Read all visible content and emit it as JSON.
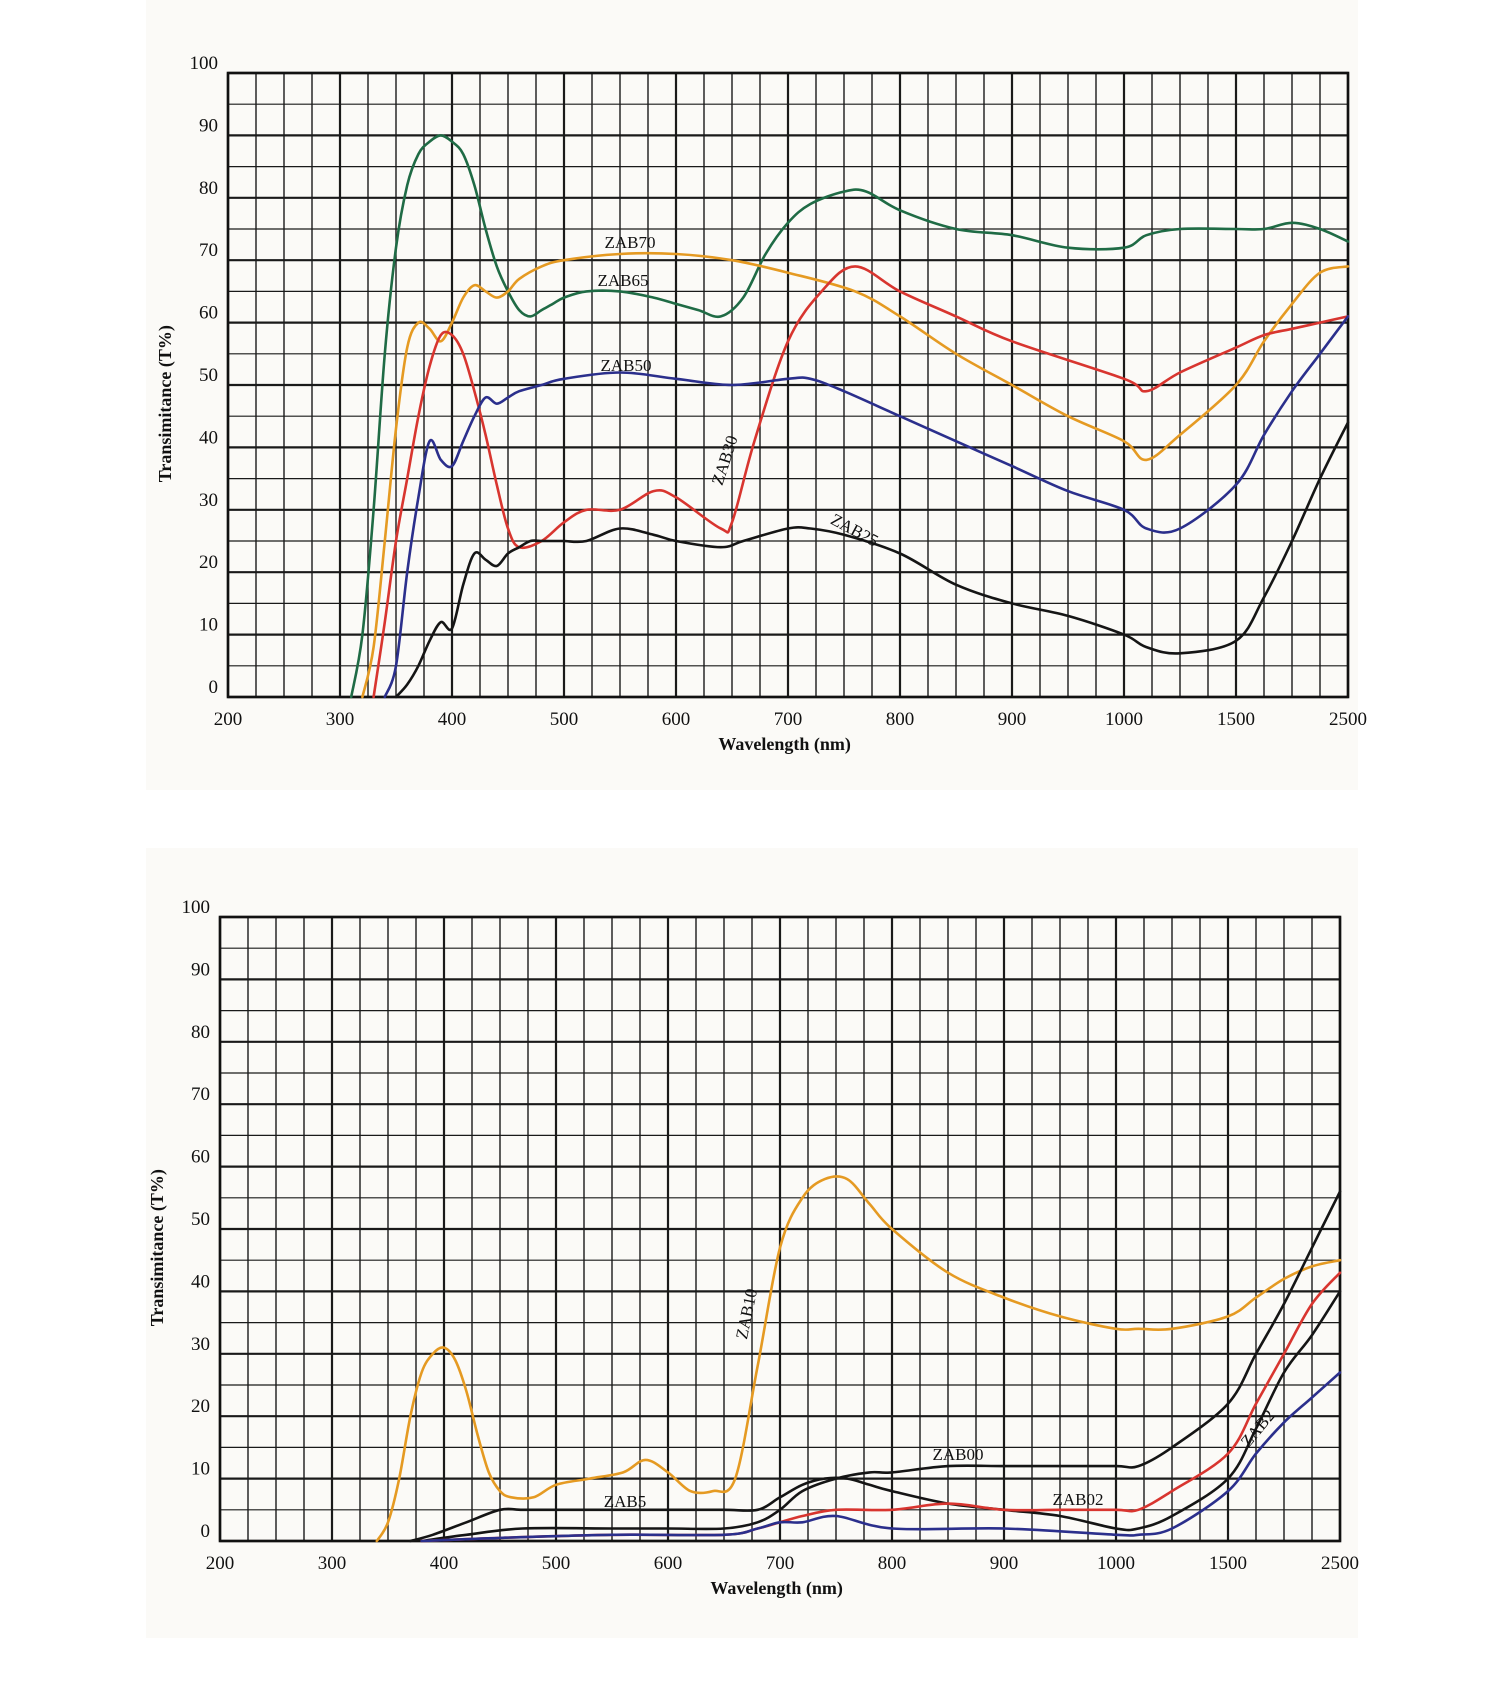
{
  "colors": {
    "green": "#1f6b45",
    "orange": "#e59a22",
    "red": "#d8352f",
    "blue": "#2b2f8c",
    "black": "#151515",
    "grid": "#1a1a1a"
  },
  "chart_data": [
    {
      "type": "line",
      "title": "",
      "xlabel": "Wavelength  (nm)",
      "ylabel": "Transimitance  (T%)",
      "x_ticks": [
        "200",
        "300",
        "400",
        "500",
        "600",
        "700",
        "800",
        "900",
        "1000",
        "1500",
        "2500"
      ],
      "y_ticks": [
        "0",
        "10",
        "20",
        "30",
        "40",
        "50",
        "60",
        "70",
        "80",
        "90",
        "100"
      ],
      "ylim": [
        0,
        100
      ],
      "grid": true,
      "series": [
        {
          "name": "ZAB70",
          "color": "green",
          "x": [
            310,
            320,
            330,
            340,
            350,
            360,
            370,
            380,
            390,
            400,
            410,
            420,
            430,
            440,
            450,
            460,
            470,
            480,
            490,
            500,
            520,
            550,
            580,
            600,
            620,
            640,
            660,
            680,
            700,
            720,
            750,
            770,
            800,
            850,
            900,
            950,
            1000,
            1100,
            1250,
            1500,
            1750,
            2000,
            2250,
            2500
          ],
          "y": [
            0,
            10,
            30,
            55,
            72,
            82,
            87,
            89,
            90,
            89,
            87,
            82,
            75,
            69,
            65,
            62,
            61,
            62,
            63,
            64,
            65,
            65,
            64,
            63,
            62,
            61,
            64,
            71,
            76,
            79,
            81,
            81,
            78,
            75,
            74,
            72,
            72,
            74,
            75,
            75,
            75,
            76,
            75,
            73
          ]
        },
        {
          "name": "ZAB65",
          "color": "orange",
          "x": [
            320,
            330,
            340,
            350,
            360,
            370,
            380,
            390,
            400,
            410,
            420,
            430,
            440,
            450,
            460,
            480,
            500,
            550,
            600,
            650,
            700,
            760,
            800,
            850,
            900,
            950,
            1000,
            1100,
            1250,
            1500,
            1750,
            2000,
            2250,
            2500
          ],
          "y": [
            0,
            8,
            25,
            43,
            56,
            60,
            59,
            57,
            60,
            64,
            66,
            65,
            64,
            65,
            67,
            69,
            70,
            71,
            71,
            70,
            68,
            65,
            61,
            55,
            50,
            45,
            41,
            38,
            42,
            50,
            57,
            63,
            68,
            69
          ]
        },
        {
          "name": "ZAB30",
          "color": "red",
          "x": [
            330,
            340,
            350,
            360,
            370,
            380,
            390,
            400,
            410,
            420,
            430,
            440,
            450,
            460,
            480,
            500,
            520,
            550,
            580,
            600,
            640,
            650,
            670,
            700,
            730,
            760,
            800,
            850,
            900,
            1000,
            1100,
            1250,
            1500,
            1750,
            2000,
            2250,
            2500
          ],
          "y": [
            0,
            12,
            25,
            35,
            45,
            53,
            58,
            58,
            55,
            49,
            42,
            34,
            27,
            24,
            25,
            28,
            30,
            30,
            33,
            32,
            27,
            28,
            41,
            57,
            65,
            69,
            65,
            61,
            57,
            51,
            49,
            52,
            56,
            58,
            59,
            60,
            61
          ]
        },
        {
          "name": "ZAB50",
          "color": "blue",
          "x": [
            340,
            350,
            360,
            370,
            380,
            390,
            400,
            410,
            420,
            430,
            440,
            450,
            460,
            480,
            500,
            550,
            600,
            650,
            700,
            720,
            750,
            800,
            850,
            900,
            950,
            1000,
            1100,
            1250,
            1500,
            1750,
            2000,
            2250,
            2500
          ],
          "y": [
            0,
            5,
            20,
            32,
            41,
            38,
            37,
            41,
            45,
            48,
            47,
            48,
            49,
            50,
            51,
            52,
            51,
            50,
            51,
            51,
            49,
            45,
            41,
            37,
            33,
            30,
            27,
            27,
            34,
            42,
            49,
            55,
            61
          ]
        },
        {
          "name": "ZAB25",
          "color": "black",
          "x": [
            350,
            360,
            370,
            380,
            390,
            400,
            410,
            420,
            430,
            440,
            450,
            460,
            470,
            480,
            490,
            500,
            520,
            550,
            580,
            600,
            640,
            660,
            700,
            720,
            750,
            800,
            850,
            900,
            950,
            1000,
            1100,
            1250,
            1500,
            1750,
            2000,
            2250,
            2500
          ],
          "y": [
            0,
            2,
            5,
            9,
            12,
            11,
            18,
            23,
            22,
            21,
            23,
            24,
            25,
            25,
            25,
            25,
            25,
            27,
            26,
            25,
            24,
            25,
            27,
            27,
            26,
            23,
            18,
            15,
            13,
            10,
            8,
            7,
            9,
            16,
            25,
            35,
            44
          ]
        }
      ]
    },
    {
      "type": "line",
      "title": "",
      "xlabel": "Wavelength  (nm)",
      "ylabel": "Transimitance  (T%)",
      "x_ticks": [
        "200",
        "300",
        "400",
        "500",
        "600",
        "700",
        "800",
        "900",
        "1000",
        "1500",
        "2500"
      ],
      "y_ticks": [
        "0",
        "10",
        "20",
        "30",
        "40",
        "50",
        "60",
        "70",
        "80",
        "90",
        "100"
      ],
      "ylim": [
        0,
        100
      ],
      "grid": true,
      "series": [
        {
          "name": "ZAB10",
          "color": "orange",
          "x": [
            340,
            350,
            360,
            370,
            380,
            390,
            400,
            410,
            420,
            430,
            440,
            450,
            460,
            480,
            500,
            530,
            560,
            580,
            600,
            620,
            640,
            660,
            680,
            700,
            720,
            740,
            760,
            780,
            800,
            850,
            900,
            950,
            1000,
            1100,
            1250,
            1500,
            1750,
            2000,
            2250,
            2500
          ],
          "y": [
            0,
            3,
            10,
            20,
            27,
            30,
            31,
            29,
            24,
            17,
            11,
            8,
            7,
            7,
            9,
            10,
            11,
            13,
            11,
            8,
            8,
            10,
            28,
            47,
            55,
            58,
            58,
            54,
            50,
            43,
            39,
            36,
            34,
            34,
            34,
            36,
            39,
            42,
            44,
            45
          ]
        },
        {
          "name": "ZAB5",
          "color": "black",
          "x": [
            370,
            390,
            420,
            450,
            470,
            500,
            550,
            600,
            650,
            680,
            700,
            720,
            740,
            760,
            780,
            800,
            850,
            900,
            950,
            1000,
            1100,
            1250,
            1500,
            1750,
            2000,
            2250,
            2500
          ],
          "y": [
            0,
            1,
            3,
            5,
            5,
            5,
            5,
            5,
            5,
            5,
            7,
            9,
            10,
            10,
            9,
            8,
            6,
            5,
            4,
            2,
            2,
            4,
            10,
            18,
            27,
            33,
            40
          ]
        },
        {
          "name": "ZAB00",
          "color": "black",
          "x": [
            380,
            420,
            470,
            550,
            600,
            650,
            680,
            700,
            720,
            750,
            780,
            800,
            850,
            900,
            950,
            1000,
            1100,
            1250,
            1500,
            1750,
            2000,
            2250,
            2500
          ],
          "y": [
            0,
            1,
            2,
            2,
            2,
            2,
            3,
            5,
            8,
            10,
            11,
            11,
            12,
            12,
            12,
            12,
            12,
            15,
            22,
            30,
            38,
            47,
            56
          ]
        },
        {
          "name": "ZAB02",
          "color": "red",
          "x": [
            380,
            450,
            550,
            650,
            680,
            700,
            720,
            750,
            800,
            850,
            900,
            950,
            1000,
            1100,
            1250,
            1500,
            1750,
            2000,
            2250,
            2500
          ],
          "y": [
            0,
            0.5,
            1,
            1,
            2,
            3,
            4,
            5,
            5,
            6,
            5,
            5,
            5,
            5,
            8,
            14,
            22,
            30,
            38,
            43
          ]
        },
        {
          "name": "ZAB2",
          "color": "blue",
          "x": [
            380,
            450,
            550,
            650,
            680,
            700,
            720,
            750,
            800,
            900,
            1000,
            1100,
            1250,
            1500,
            1750,
            2000,
            2250,
            2500
          ],
          "y": [
            0,
            0.5,
            1,
            1,
            2,
            3,
            3,
            4,
            2,
            2,
            1,
            1,
            2,
            8,
            14,
            19,
            23,
            27
          ]
        }
      ],
      "labels": [
        {
          "text": "ZAB10"
        },
        {
          "text": "ZAB5"
        },
        {
          "text": "ZAB00"
        },
        {
          "text": "ZAB02"
        },
        {
          "text": "ZAB2"
        }
      ]
    }
  ]
}
